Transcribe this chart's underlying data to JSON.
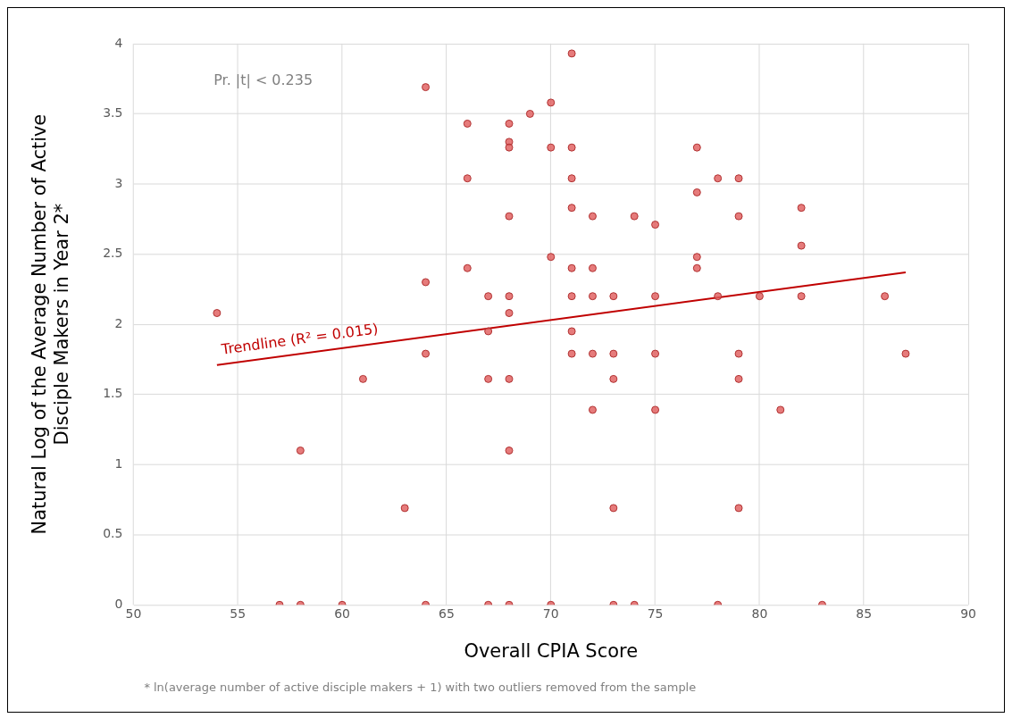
{
  "chart_data": {
    "type": "scatter",
    "xlabel": "Overall CPIA Score",
    "ylabel": "Natural Log of the Average Number of Active\nDisciple Makers in Year 2*",
    "xlim": [
      50,
      90
    ],
    "xticks": [
      50,
      55,
      60,
      65,
      70,
      75,
      80,
      85,
      90
    ],
    "ylim": [
      0,
      4
    ],
    "yticks": [
      0,
      0.5,
      1,
      1.5,
      2,
      2.5,
      3,
      3.5,
      4
    ],
    "grid": true,
    "annotations": [
      "Pr. |t| < 0.235",
      "* ln(average number of active disciple makers + 1) with two outliers removed from the sample"
    ],
    "series": [
      {
        "marker": "circle",
        "color": "#e05a5a",
        "x": [
          54,
          57,
          58,
          58,
          60,
          61,
          63,
          64,
          64,
          64,
          64,
          66,
          66,
          66,
          67,
          67,
          67,
          67,
          68,
          68,
          68,
          68,
          68,
          68,
          68,
          68,
          68,
          69,
          70,
          70,
          70,
          70,
          71,
          71,
          71,
          71,
          71,
          71,
          71,
          71,
          72,
          72,
          72,
          72,
          72,
          73,
          73,
          73,
          73,
          73,
          74,
          74,
          75,
          75,
          75,
          75,
          77,
          77,
          77,
          77,
          78,
          78,
          78,
          79,
          79,
          79,
          79,
          79,
          80,
          81,
          82,
          82,
          82,
          83,
          86,
          87
        ],
        "values": [
          2.08,
          0,
          0,
          1.1,
          0,
          1.61,
          0.69,
          0,
          1.79,
          2.3,
          3.69,
          3.43,
          3.04,
          2.4,
          2.2,
          1.95,
          1.61,
          0,
          3.43,
          3.3,
          3.26,
          2.77,
          2.2,
          2.08,
          1.61,
          1.1,
          0,
          3.5,
          3.58,
          3.26,
          2.48,
          0,
          3.93,
          3.26,
          3.04,
          2.83,
          2.4,
          2.2,
          1.95,
          1.79,
          2.77,
          2.4,
          2.2,
          1.79,
          1.39,
          2.2,
          1.79,
          1.61,
          0.69,
          0,
          2.77,
          0,
          2.71,
          2.2,
          1.79,
          1.39,
          3.26,
          2.94,
          2.48,
          2.4,
          3.04,
          2.2,
          0,
          3.04,
          2.77,
          1.79,
          1.61,
          0.69,
          2.2,
          1.39,
          2.83,
          2.56,
          2.2,
          0,
          2.2,
          1.79
        ]
      },
      {
        "type": "line",
        "name": "Trendline (R² = 0.015)",
        "color": "#c00000",
        "x": [
          54,
          87
        ],
        "values": [
          1.71,
          2.37
        ]
      }
    ]
  }
}
